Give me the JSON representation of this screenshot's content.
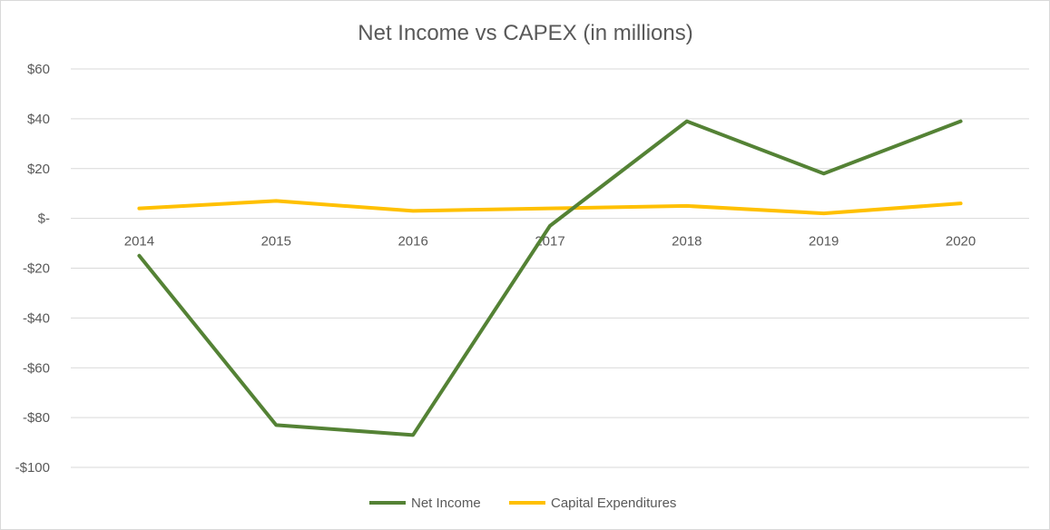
{
  "chart_data": {
    "type": "line",
    "title": "Net Income vs CAPEX (in millions)",
    "xlabel": "",
    "ylabel": "",
    "categories": [
      "2014",
      "2015",
      "2016",
      "2017",
      "2018",
      "2019",
      "2020"
    ],
    "ylim": [
      -100,
      60
    ],
    "yticks": [
      60,
      40,
      20,
      0,
      -20,
      -40,
      -60,
      -80,
      -100
    ],
    "ytick_labels": [
      "$60",
      "$40",
      "$20",
      "$-",
      "-$20",
      "-$40",
      "-$60",
      "-$80",
      "-$100"
    ],
    "grid": true,
    "legend_position": "bottom",
    "series": [
      {
        "name": "Net Income",
        "color": "#548235",
        "values": [
          -15,
          -83,
          -87,
          -3,
          39,
          18,
          39
        ]
      },
      {
        "name": "Capital Expenditures",
        "color": "#ffc000",
        "values": [
          4,
          7,
          3,
          4,
          5,
          2,
          6
        ]
      }
    ]
  }
}
